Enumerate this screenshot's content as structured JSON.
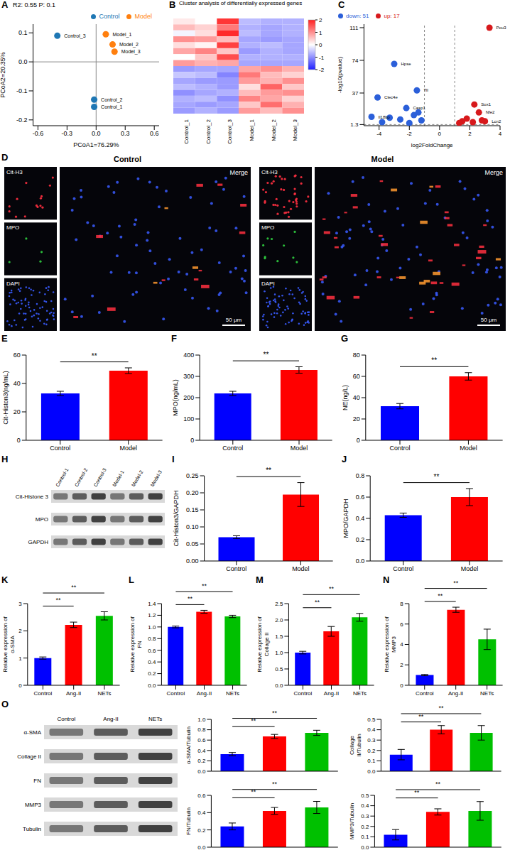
{
  "chart_data": [
    {
      "panel": "A",
      "type": "scatter",
      "title": "R2: 0.55 P: 0.1",
      "x_label": "PCoA1=76.29%",
      "y_label": "PCoA2=20.35%",
      "xlim": [
        -0.65,
        0.65
      ],
      "xticks": [
        -0.6,
        -0.3,
        {
          "value": 0,
          "label": "0.0"
        },
        0.3,
        0.6
      ],
      "ylim": [
        -0.22,
        0.13
      ],
      "yticks": [
        -0.2,
        -0.1,
        {
          "value": 0,
          "label": "0.0"
        },
        0.1
      ],
      "reference_lines": {
        "x": [
          0
        ],
        "y": [
          0
        ]
      },
      "legend": "top-right",
      "series": [
        {
          "name": "Control",
          "color": "#1f77b4",
          "x": [
            -0.02,
            -0.02,
            -0.4
          ],
          "values": [
            -0.155,
            -0.13,
            0.09
          ],
          "labels": [
            "Control_1",
            "Control_2",
            "Control_3"
          ]
        },
        {
          "name": "Model",
          "color": "#ff7f0e",
          "x": [
            0.1,
            0.17,
            0.19
          ],
          "values": [
            0.095,
            0.06,
            0.035
          ],
          "labels": [
            "Model_1",
            "Model_2",
            "Model_3"
          ]
        }
      ]
    },
    {
      "panel": "B",
      "type": "heatmap",
      "title": "Cluster analysis of differentially expressed genes",
      "columns": [
        "Control_1",
        "Control_2",
        "Control_3",
        "Model_1",
        "Model_2",
        "Model_3"
      ],
      "cells": [
        [
          0.2,
          0.0,
          1.8,
          -0.6,
          -0.7,
          -0.7
        ],
        [
          0.6,
          0.4,
          1.2,
          -0.7,
          -0.8,
          -0.7
        ],
        [
          -0.1,
          0.3,
          1.9,
          -0.6,
          -0.8,
          -0.7
        ],
        [
          1.0,
          0.9,
          0.6,
          -0.8,
          -0.9,
          -0.8
        ],
        [
          0.3,
          0.1,
          1.7,
          -0.7,
          -0.6,
          -0.8
        ],
        [
          0.8,
          1.1,
          0.5,
          -0.9,
          -0.7,
          -0.8
        ],
        [
          0.0,
          0.5,
          1.6,
          -0.7,
          -0.7,
          -0.7
        ],
        [
          0.9,
          0.7,
          0.8,
          -0.8,
          -0.8,
          -0.8
        ],
        [
          -0.9,
          -0.8,
          -0.8,
          0.8,
          1.0,
          0.7
        ],
        [
          -0.5,
          -0.6,
          -1.1,
          1.2,
          0.6,
          0.4
        ],
        [
          -0.8,
          -0.9,
          -0.9,
          0.9,
          0.7,
          1.0
        ],
        [
          -0.6,
          -0.7,
          -0.9,
          0.3,
          1.4,
          0.5
        ],
        [
          -1.0,
          -0.8,
          -0.7,
          0.6,
          0.9,
          1.0
        ],
        [
          -0.7,
          -0.6,
          -1.0,
          1.1,
          0.8,
          0.4
        ],
        [
          -0.8,
          -0.9,
          -0.8,
          0.5,
          1.3,
          0.7
        ],
        [
          -0.9,
          -0.7,
          -0.9,
          0.9,
          0.6,
          1.0
        ]
      ],
      "colorbar": {
        "range": [
          -2,
          2
        ],
        "ticks": [
          -2,
          -1,
          0,
          1,
          2
        ],
        "colors": [
          "#2020ff",
          "#ffffff",
          "#ff2020"
        ]
      }
    },
    {
      "panel": "C",
      "type": "scatter",
      "x_label": "log2FoldChange",
      "y_label": "-log10(pvalue)",
      "xlim": [
        -5,
        4
      ],
      "xticks": [
        -4,
        -2,
        0,
        2,
        4
      ],
      "ylim": [
        0,
        115
      ],
      "yticks": [
        1.3,
        37,
        74,
        111
      ],
      "reference_lines": {
        "x": [
          -1,
          1
        ],
        "y": [
          1.3
        ]
      },
      "legend": "top-left",
      "series": [
        {
          "name": "up: 17",
          "color": "#d7191c",
          "x": [
            3.3,
            2.3,
            2.6,
            3.0,
            1.8,
            1.5,
            2.8,
            2.2,
            1.3
          ],
          "values": [
            111,
            24,
            15,
            5,
            8,
            5,
            6,
            4,
            3
          ],
          "labels": [
            "Pou3",
            "Sox1",
            "Nfe2",
            "Lcn2",
            null,
            null,
            null,
            null,
            null
          ]
        },
        {
          "name": "down: 51",
          "color": "#2b5fd9",
          "x": [
            -3.0,
            -4.1,
            -1.5,
            -2.2,
            -4.5,
            -3.3,
            -2.6,
            -1.7,
            -1.2,
            -3.8,
            -2.0,
            -1.4
          ],
          "values": [
            70,
            32,
            40,
            20,
            10,
            9,
            7,
            12,
            6,
            4,
            3,
            15
          ],
          "labels": [
            "Hpse",
            "Clec4e",
            "Tll",
            "Casp1",
            "Il18bp",
            null,
            null,
            null,
            null,
            null,
            null,
            null
          ]
        }
      ]
    },
    {
      "panel": "E",
      "type": "bar",
      "y_label": "Cit-Histon3(ng/mL)",
      "categories": [
        "Control",
        "Model"
      ],
      "values": [
        33,
        49
      ],
      "errors": [
        1.5,
        2
      ],
      "colors": [
        "#0000ff",
        "#ff0000"
      ],
      "ylim": [
        0,
        60
      ],
      "yticks": [
        0,
        20,
        40,
        60
      ],
      "comparisons": [
        {
          "pair": [
            "Control",
            "Model"
          ],
          "label": "**"
        }
      ]
    },
    {
      "panel": "F",
      "type": "bar",
      "y_label": "MPO(ng/mL)",
      "categories": [
        "Control",
        "Model"
      ],
      "values": [
        220,
        330
      ],
      "errors": [
        10,
        15
      ],
      "colors": [
        "#0000ff",
        "#ff0000"
      ],
      "ylim": [
        0,
        400
      ],
      "yticks": [
        0,
        100,
        200,
        300,
        400
      ],
      "comparisons": [
        {
          "pair": [
            "Control",
            "Model"
          ],
          "label": "**"
        }
      ]
    },
    {
      "panel": "G",
      "type": "bar",
      "y_label": "NE(ng/L)",
      "categories": [
        "Control",
        "Model"
      ],
      "values": [
        32,
        60
      ],
      "errors": [
        2.5,
        3.5
      ],
      "colors": [
        "#0000ff",
        "#ff0000"
      ],
      "ylim": [
        0,
        80
      ],
      "yticks": [
        0,
        20,
        40,
        60,
        80
      ],
      "comparisons": [
        {
          "pair": [
            "Control",
            "Model"
          ],
          "label": "**"
        }
      ]
    },
    {
      "panel": "I",
      "type": "bar",
      "y_label": "Cit-Histon3/GAPDH",
      "categories": [
        "Control",
        "Model"
      ],
      "values": [
        0.07,
        0.195
      ],
      "errors": [
        0.004,
        0.035
      ],
      "colors": [
        "#0000ff",
        "#ff0000"
      ],
      "ylim": [
        0,
        0.25
      ],
      "yticks": [
        {
          "value": 0,
          "label": "0.00"
        },
        0.05,
        {
          "value": 0.1,
          "label": "0.10"
        },
        0.15,
        {
          "value": 0.2,
          "label": "0.20"
        },
        0.25
      ],
      "comparisons": [
        {
          "pair": [
            "Control",
            "Model"
          ],
          "label": "**"
        }
      ]
    },
    {
      "panel": "J",
      "type": "bar",
      "y_label": "MPO/GAPDH",
      "categories": [
        "Control",
        "Model"
      ],
      "values": [
        0.43,
        0.6
      ],
      "errors": [
        0.02,
        0.08
      ],
      "colors": [
        "#0000ff",
        "#ff0000"
      ],
      "ylim": [
        0,
        0.8
      ],
      "yticks": [
        {
          "value": 0,
          "label": "0.0"
        },
        0.2,
        0.4,
        0.6,
        0.8
      ],
      "comparisons": [
        {
          "pair": [
            "Control",
            "Model"
          ],
          "label": "**"
        }
      ]
    },
    {
      "panel": "K",
      "type": "bar",
      "y_label": "Relative expression of α-SMA",
      "categories": [
        "Control",
        "Ang-II",
        "NETs"
      ],
      "values": [
        1.0,
        2.22,
        2.55
      ],
      "errors": [
        0.04,
        0.1,
        0.15
      ],
      "colors": [
        "#0000ff",
        "#ff0000",
        "#00c000"
      ],
      "ylim": [
        0,
        3
      ],
      "yticks": [
        0,
        1,
        2,
        3
      ],
      "comparisons": [
        {
          "pair": [
            "Control",
            "Ang-II"
          ],
          "label": "**"
        },
        {
          "pair": [
            "Control",
            "NETs"
          ],
          "label": "**"
        }
      ]
    },
    {
      "panel": "L",
      "type": "bar",
      "y_label": "Relative expression of FN",
      "categories": [
        "Control",
        "Ang-II",
        "NETs"
      ],
      "values": [
        1.0,
        1.26,
        1.18
      ],
      "errors": [
        0.015,
        0.025,
        0.02
      ],
      "colors": [
        "#0000ff",
        "#ff0000",
        "#00c000"
      ],
      "ylim": [
        0,
        1.4
      ],
      "yticks": [
        {
          "value": 0,
          "label": "0.0"
        },
        0.2,
        0.4,
        0.6,
        0.8,
        {
          "value": 1,
          "label": "1.0"
        },
        1.2,
        1.4
      ],
      "comparisons": [
        {
          "pair": [
            "Control",
            "Ang-II"
          ],
          "label": "**"
        },
        {
          "pair": [
            "Control",
            "NETs"
          ],
          "label": "**"
        }
      ]
    },
    {
      "panel": "M",
      "type": "bar",
      "y_label": "Relative expression of Collage II",
      "categories": [
        "Control",
        "Ang-II",
        "NETs"
      ],
      "values": [
        1.0,
        1.65,
        2.08
      ],
      "errors": [
        0.04,
        0.15,
        0.12
      ],
      "colors": [
        "#0000ff",
        "#ff0000",
        "#00c000"
      ],
      "ylim": [
        0,
        2.5
      ],
      "yticks": [
        {
          "value": 0,
          "label": "0.0"
        },
        0.5,
        {
          "value": 1,
          "label": "1.0"
        },
        1.5,
        {
          "value": 2,
          "label": "2.0"
        },
        2.5
      ],
      "comparisons": [
        {
          "pair": [
            "Control",
            "Ang-II"
          ],
          "label": "**"
        },
        {
          "pair": [
            "Control",
            "NETs"
          ],
          "label": "**"
        }
      ]
    },
    {
      "panel": "N",
      "type": "bar",
      "y_label": "Relative expression of MMP3",
      "categories": [
        "Control",
        "Ang-II",
        "NETs"
      ],
      "values": [
        1.0,
        7.4,
        4.5
      ],
      "errors": [
        0.06,
        0.25,
        1.0
      ],
      "colors": [
        "#0000ff",
        "#ff0000",
        "#00c000"
      ],
      "ylim": [
        0,
        8
      ],
      "yticks": [
        0,
        2,
        4,
        6,
        8
      ],
      "comparisons": [
        {
          "pair": [
            "Control",
            "Ang-II"
          ],
          "label": "**"
        },
        {
          "pair": [
            "Control",
            "NETs"
          ],
          "label": "**"
        }
      ]
    },
    {
      "panel": "O",
      "type": "bar",
      "y_label": "α-SMA/Tubulin",
      "tick_labels": "y",
      "categories": [
        "Control",
        "Ang-II",
        "NETs"
      ],
      "values": [
        0.33,
        0.67,
        0.74
      ],
      "errors": [
        0.03,
        0.04,
        0.05
      ],
      "colors": [
        "#0000ff",
        "#ff0000",
        "#00c000"
      ],
      "ylim": [
        0,
        1
      ],
      "yticks": [
        {
          "value": 0,
          "label": "0.0"
        },
        0.2,
        0.4,
        0.6,
        0.8,
        {
          "value": 1,
          "label": "1.0"
        }
      ],
      "comparisons": [
        {
          "pair": [
            "Control",
            "Ang-II"
          ],
          "label": "**"
        },
        {
          "pair": [
            "Control",
            "NETs"
          ],
          "label": "**"
        }
      ]
    },
    {
      "panel": "O",
      "type": "bar",
      "y_label": "Collage II/Tubulin",
      "tick_labels": "y",
      "categories": [
        "Control",
        "Ang-II",
        "NETs"
      ],
      "values": [
        0.16,
        0.4,
        0.37
      ],
      "errors": [
        0.05,
        0.04,
        0.07
      ],
      "colors": [
        "#0000ff",
        "#ff0000",
        "#00c000"
      ],
      "ylim": [
        0,
        0.5
      ],
      "yticks": [
        {
          "value": 0,
          "label": "0.0"
        },
        0.1,
        0.2,
        0.3,
        0.4,
        0.5
      ],
      "comparisons": [
        {
          "pair": [
            "Control",
            "Ang-II"
          ],
          "label": "**"
        },
        {
          "pair": [
            "Control",
            "NETs"
          ],
          "label": "**"
        }
      ]
    },
    {
      "panel": "O",
      "type": "bar",
      "y_label": "FN/Tubulin",
      "tick_labels": "y",
      "categories": [
        "Control",
        "Ang-II",
        "NETs"
      ],
      "values": [
        0.24,
        0.42,
        0.46
      ],
      "errors": [
        0.04,
        0.04,
        0.07
      ],
      "colors": [
        "#0000ff",
        "#ff0000",
        "#00c000"
      ],
      "ylim": [
        0,
        0.6
      ],
      "yticks": [
        {
          "value": 0,
          "label": "0.0"
        },
        0.2,
        0.4,
        0.6
      ],
      "comparisons": [
        {
          "pair": [
            "Control",
            "Ang-II"
          ],
          "label": "**"
        },
        {
          "pair": [
            "Control",
            "NETs"
          ],
          "label": "**"
        }
      ]
    },
    {
      "panel": "O",
      "type": "bar",
      "y_label": "MMP3/Tubulin",
      "tick_labels": "y",
      "categories": [
        "Control",
        "Ang-II",
        "NETs"
      ],
      "values": [
        0.12,
        0.34,
        0.35
      ],
      "errors": [
        0.05,
        0.03,
        0.09
      ],
      "colors": [
        "#0000ff",
        "#ff0000",
        "#00c000"
      ],
      "ylim": [
        0,
        0.5
      ],
      "yticks": [
        {
          "value": 0,
          "label": "0.0"
        },
        0.1,
        0.2,
        0.3,
        0.4,
        0.5
      ],
      "comparisons": [
        {
          "pair": [
            "Control",
            "Ang-II"
          ],
          "label": "**"
        },
        {
          "pair": [
            "Control",
            "NETs"
          ],
          "label": "**"
        }
      ]
    }
  ],
  "images": {
    "D": {
      "panel": "D",
      "groups": [
        "Control",
        "Model"
      ],
      "channels": [
        "Cit-H3",
        "MPO",
        "DAPI"
      ],
      "merge": "Merge",
      "scale_bar": "50 μm"
    },
    "H": {
      "panel": "H",
      "lanes": [
        "Control-1",
        "Control-2",
        "Control-3",
        "Model-1",
        "Model-2",
        "Model-3"
      ],
      "rows": [
        "Cit-Histone 3",
        "MPO",
        "GAPDH"
      ]
    },
    "O": {
      "panel": "O",
      "lanes": [
        "Control",
        "Ang-II",
        "NETs"
      ],
      "rows": [
        "α-SMA",
        "Collage II",
        "FN",
        "MMP3",
        "Tubulin"
      ]
    }
  }
}
